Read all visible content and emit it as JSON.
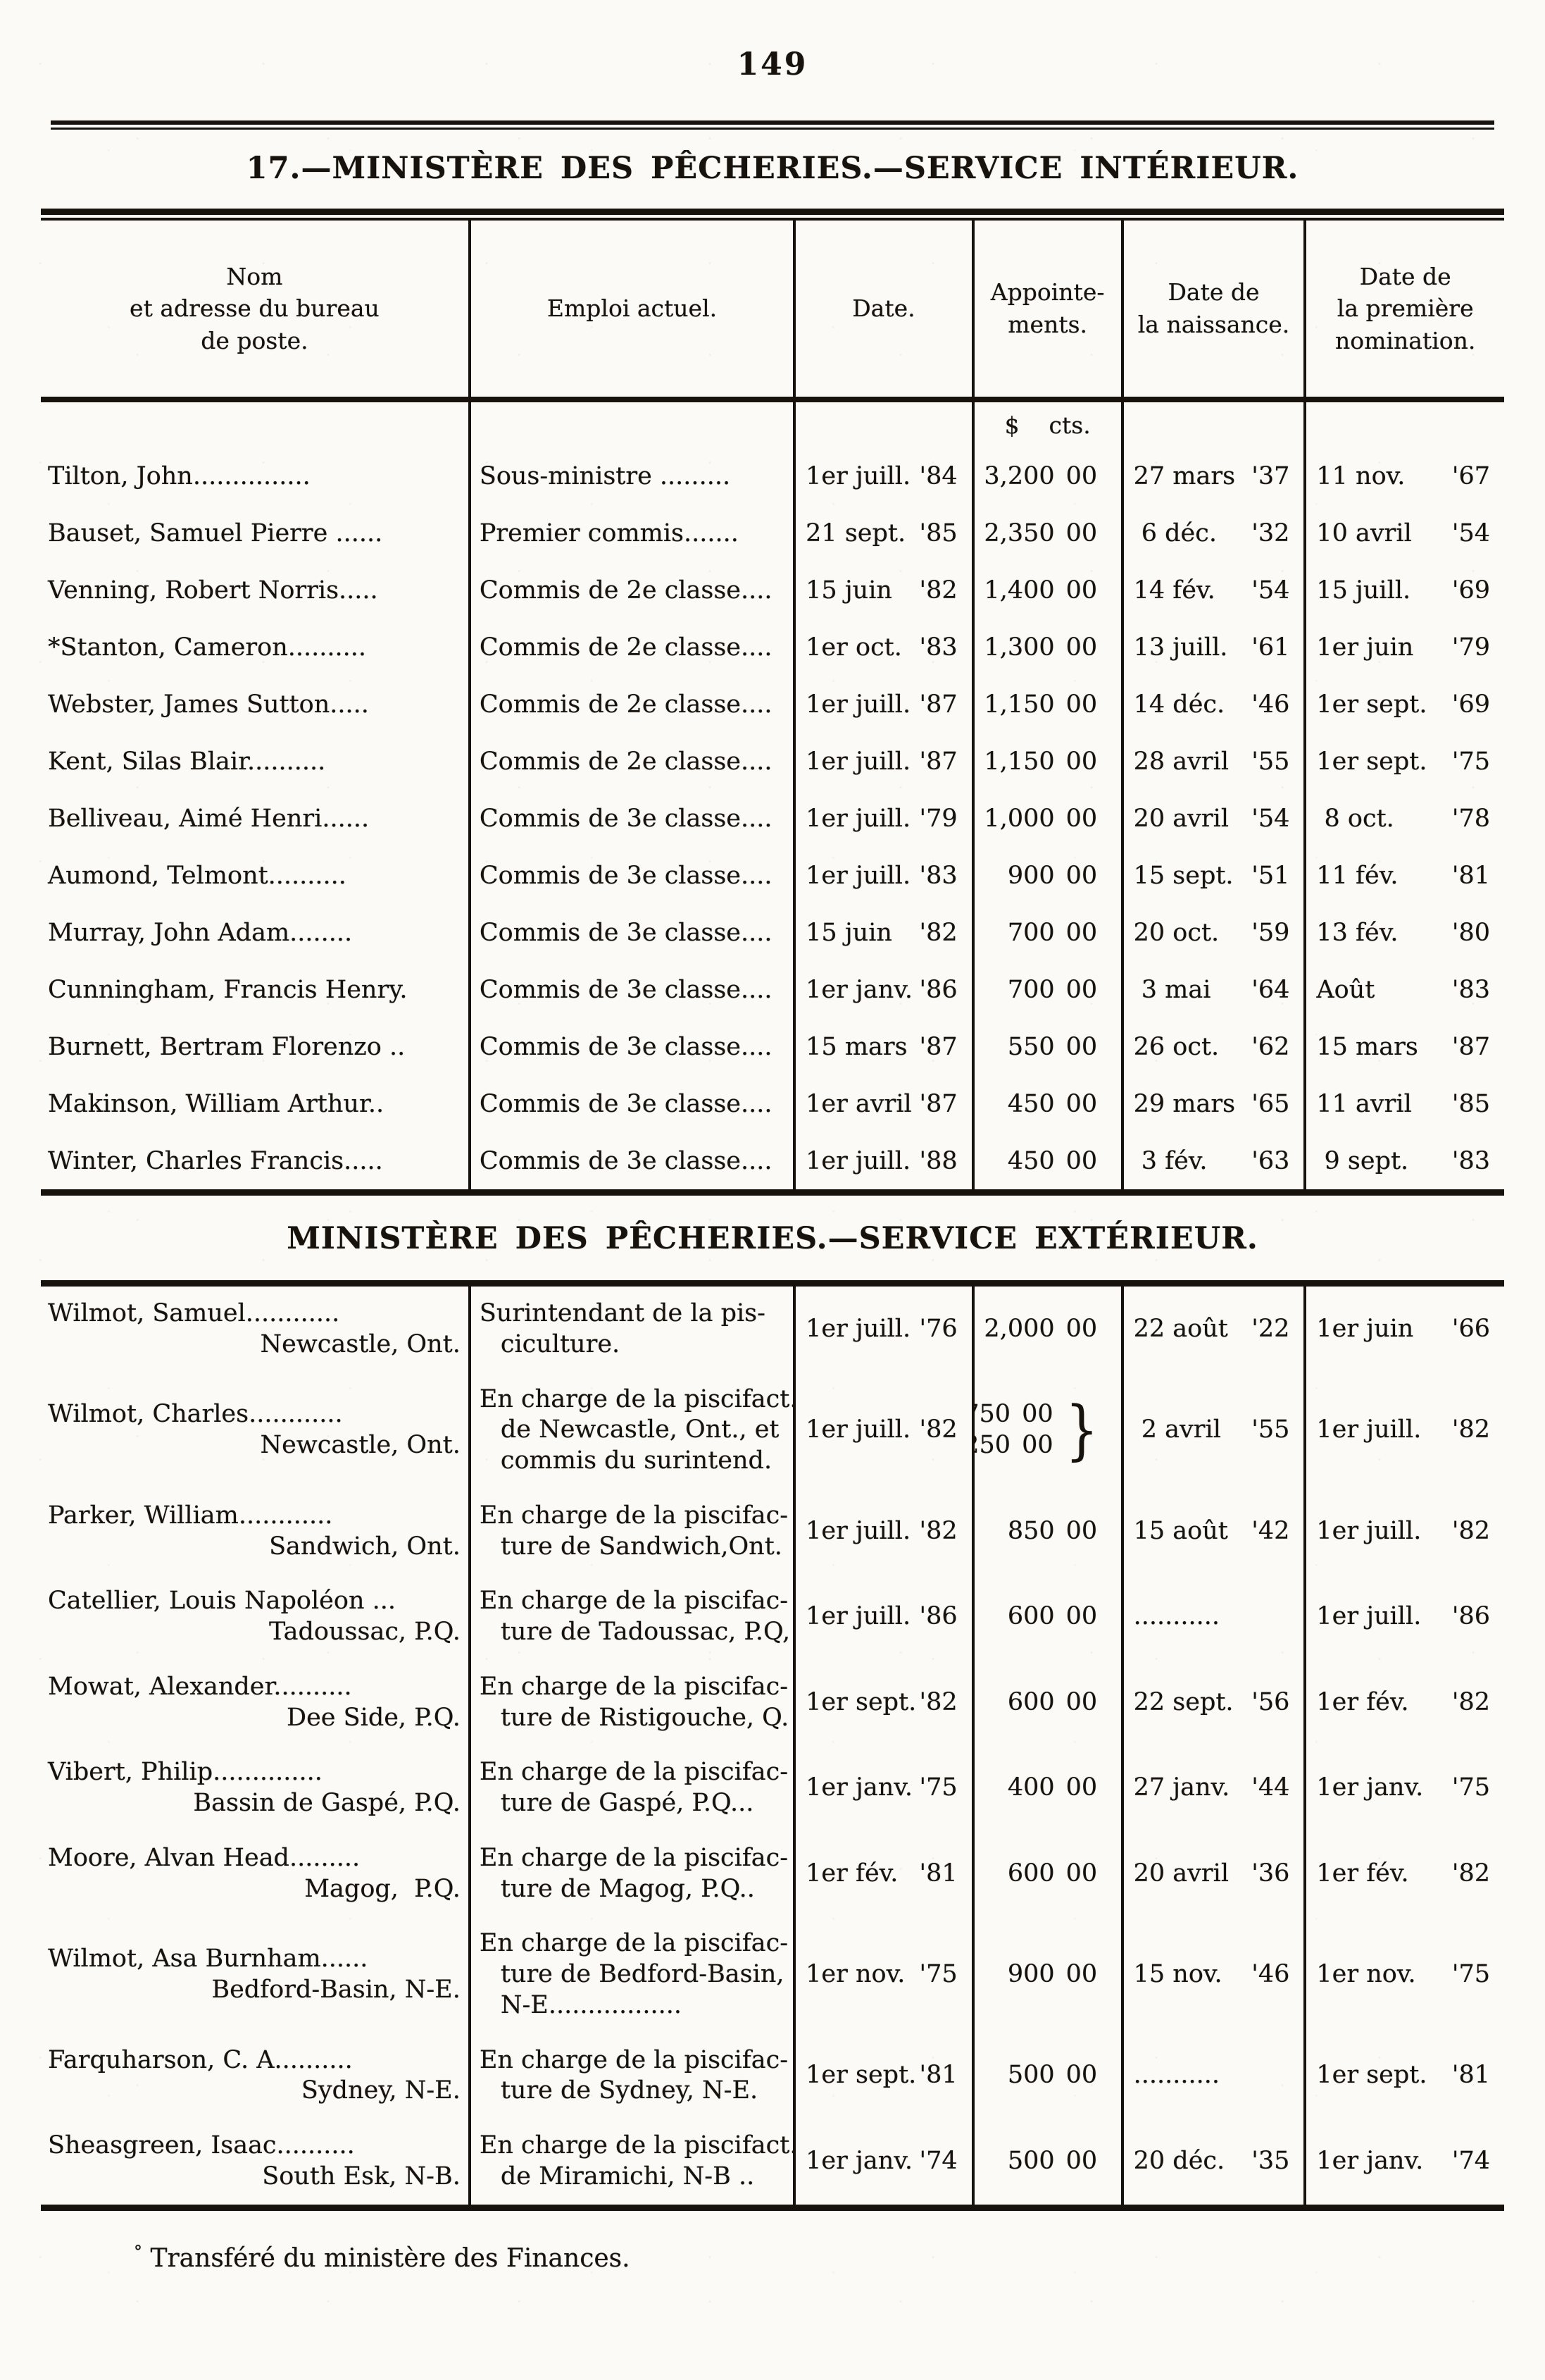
{
  "page_number": "149",
  "titles": {
    "interior": "17.—MINISTÈRE DES PÊCHERIES.—SERVICE INTÉRIEUR.",
    "exterior": "MINISTÈRE DES PÊCHERIES.—SERVICE EXTÉRIEUR."
  },
  "table": {
    "columns": [
      "Nom\net adresse du bureau\nde poste.",
      "Emploi actuel.",
      "Date.",
      "Appointe-\nments.",
      "Date de\nla naissance.",
      "Date de\nla première\nnomination."
    ],
    "currency_header": "$    cts.",
    "interior_rows": [
      {
        "name": "Tilton, John...............",
        "emploi": "Sous-ministre .........",
        "date": "1er juill. '84",
        "amount": "3,200 00",
        "naissance": "27 mars '37",
        "nomination": "11 nov. '67"
      },
      {
        "name": "Bauset, Samuel Pierre ......",
        "emploi": "Premier commis.......",
        "date": "21 sept. '85",
        "amount": "2,350 00",
        "naissance": " 6 déc. '32",
        "nomination": "10 avril '54"
      },
      {
        "name": "Venning, Robert Norris.....",
        "emploi": "Commis de 2e classe....",
        "date": "15 juin '82",
        "amount": "1,400 00",
        "naissance": "14 fév. '54",
        "nomination": "15 juill. '69"
      },
      {
        "name": "*Stanton, Cameron..........",
        "emploi": "Commis de 2e classe....",
        "date": "1er oct. '83",
        "amount": "1,300 00",
        "naissance": "13 juill. '61",
        "nomination": "1er juin '79"
      },
      {
        "name": "Webster, James Sutton.....",
        "emploi": "Commis de 2e classe....",
        "date": "1er juill. '87",
        "amount": "1,150 00",
        "naissance": "14 déc. '46",
        "nomination": "1er sept. '69"
      },
      {
        "name": "Kent, Silas Blair..........",
        "emploi": "Commis de 2e classe....",
        "date": "1er juill. '87",
        "amount": "1,150 00",
        "naissance": "28 avril '55",
        "nomination": "1er sept. '75"
      },
      {
        "name": "Belliveau, Aimé Henri......",
        "emploi": "Commis de 3e classe....",
        "date": "1er juill. '79",
        "amount": "1,000 00",
        "naissance": "20 avril '54",
        "nomination": " 8 oct. '78"
      },
      {
        "name": "Aumond, Telmont..........",
        "emploi": "Commis de 3e classe....",
        "date": "1er juill. '83",
        "amount": "900 00",
        "naissance": "15 sept. '51",
        "nomination": "11 fév. '81"
      },
      {
        "name": "Murray, John Adam........",
        "emploi": "Commis de 3e classe....",
        "date": "15 juin '82",
        "amount": "700 00",
        "naissance": "20 oct. '59",
        "nomination": "13 fév. '80"
      },
      {
        "name": "Cunningham, Francis Henry.",
        "emploi": "Commis de 3e classe....",
        "date": "1er janv. '86",
        "amount": "700 00",
        "naissance": " 3 mai '64",
        "nomination": "Août '83"
      },
      {
        "name": "Burnett, Bertram Florenzo ..",
        "emploi": "Commis de 3e classe....",
        "date": "15 mars '87",
        "amount": "550 00",
        "naissance": "26 oct. '62",
        "nomination": "15 mars '87"
      },
      {
        "name": "Makinson, William Arthur..",
        "emploi": "Commis de 3e classe....",
        "date": "1er avril '87",
        "amount": "450 00",
        "naissance": "29 mars '65",
        "nomination": "11 avril '85"
      },
      {
        "name": "Winter, Charles Francis.....",
        "emploi": "Commis de 3e classe....",
        "date": "1er juill. '88",
        "amount": "450 00",
        "naissance": " 3 fév. '63",
        "nomination": " 9 sept. '83"
      }
    ],
    "exterior_rows": [
      {
        "name": "Wilmot, Samuel............",
        "address": "Newcastle, Ont.",
        "emploi": [
          "Surintendant de la pis-",
          "ciculture."
        ],
        "date": "1er juill. '76",
        "amount": "2,000 00",
        "naissance": "22 août '22",
        "nomination": "1er juin '66"
      },
      {
        "name": "Wilmot, Charles............",
        "address": "Newcastle, Ont.",
        "emploi": [
          "En charge de la piscifact.",
          "de Newcastle, Ont., et",
          "commis du surintend."
        ],
        "date": "1er juill. '82",
        "amount": [
          "750 00",
          "250 00"
        ],
        "brace": "}",
        "naissance": " 2 avril '55",
        "nomination": "1er juill. '82"
      },
      {
        "name": "Parker, William............",
        "address": "Sandwich, Ont.",
        "emploi": [
          "En charge de la piscifac-",
          "ture de Sandwich,Ont."
        ],
        "date": "1er juill. '82",
        "amount": "850 00",
        "naissance": "15 août '42",
        "nomination": "1er juill. '82"
      },
      {
        "name": "Catellier, Louis Napoléon ...",
        "address": "Tadoussac, P.Q.",
        "emploi": [
          "En charge de la piscifac-",
          "ture de Tadoussac, P.Q,"
        ],
        "date": "1er juill. '86",
        "amount": "600 00",
        "naissance": "...........",
        "nomination": "1er juill. '86"
      },
      {
        "name": "Mowat, Alexander..........",
        "address": "Dee Side, P.Q.",
        "emploi": [
          "En charge de la piscifac-",
          "ture de Ristigouche, Q."
        ],
        "date": "1er sept. '82",
        "amount": "600 00",
        "naissance": "22 sept. '56",
        "nomination": "1er fév. '82"
      },
      {
        "name": "Vibert, Philip..............",
        "address": "Bassin de Gaspé, P.Q.",
        "emploi": [
          "En charge de la piscifac-",
          "ture de Gaspé, P.Q..."
        ],
        "date": "1er janv. '75",
        "amount": "400 00",
        "naissance": "27 janv. '44",
        "nomination": "1er janv. '75"
      },
      {
        "name": "Moore, Alvan Head.........",
        "address": "Magog,  P.Q.",
        "emploi": [
          "En charge de la piscifac-",
          "ture de Magog, P.Q.."
        ],
        "date": "1er fév. '81",
        "amount": "600 00",
        "naissance": "20 avril '36",
        "nomination": "1er fév. '82"
      },
      {
        "name": "Wilmot, Asa Burnham......",
        "address": "Bedford-Basin, N-E.",
        "emploi": [
          "En charge de la piscifac-",
          "ture de Bedford-Basin,",
          "N-E................."
        ],
        "date": "1er nov. '75",
        "amount": "900 00",
        "naissance": "15 nov. '46",
        "nomination": "1er nov. '75"
      },
      {
        "name": "Farquharson, C. A..........",
        "address": "Sydney, N-E.",
        "emploi": [
          "En charge de la piscifac-",
          "ture de Sydney, N-E."
        ],
        "date": "1er sept. '81",
        "amount": "500 00",
        "naissance": "...........",
        "nomination": "1er sept. '81"
      },
      {
        "name": "Sheasgreen, Isaac..........",
        "address": "South Esk, N-B.",
        "emploi": [
          "En charge de la piscifact.",
          "de Miramichi, N-B .."
        ],
        "date": "1er janv. '74",
        "amount": "500 00",
        "naissance": "20 déc. '35",
        "nomination": "1er janv. '74"
      }
    ]
  },
  "footnote": {
    "marker": "°",
    "text": "Transféré du ministère des Finances."
  }
}
